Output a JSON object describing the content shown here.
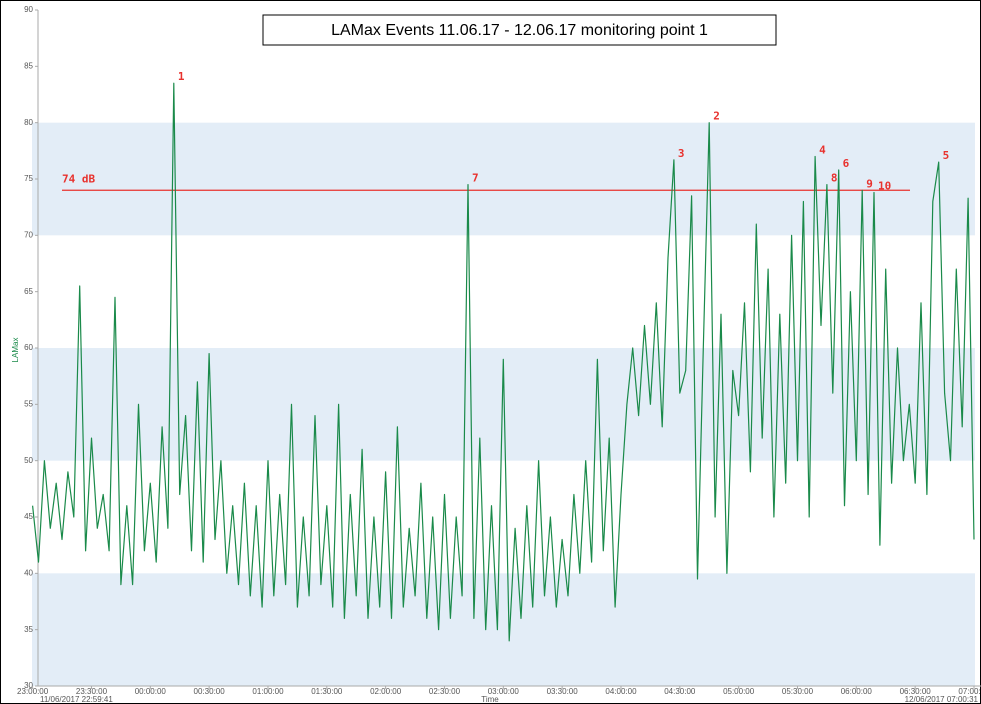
{
  "chart_data": {
    "type": "line",
    "title": "LAMax Events 11.06.17 - 12.06.17 monitoring point 1",
    "x_label": "Time",
    "y_label": "LAMax",
    "date_labels": [
      "11/06/2017 22:59:41",
      "12/06/2017 07:00:31"
    ],
    "xlim": [
      "22:59:41",
      "07:00:31"
    ],
    "xticks": [
      "23:00:00",
      "23:30:00",
      "00:00:00",
      "00:30:00",
      "01:00:00",
      "01:30:00",
      "02:00:00",
      "02:30:00",
      "03:00:00",
      "03:30:00",
      "04:00:00",
      "04:30:00",
      "05:00:00",
      "05:30:00",
      "06:00:00",
      "06:30:00",
      "07:00:00"
    ],
    "ylim": [
      30,
      90
    ],
    "yticks": [
      30,
      35,
      40,
      45,
      50,
      55,
      60,
      65,
      70,
      75,
      80,
      85,
      90
    ],
    "bands": [
      [
        30,
        40
      ],
      [
        50,
        60
      ],
      [
        70,
        80
      ]
    ],
    "band_color": "#e3edf7",
    "threshold": {
      "value": 74,
      "label": "74 dB",
      "color": "#e8322e"
    },
    "x": [
      "23:00:00",
      "23:03:00",
      "23:06:00",
      "23:09:00",
      "23:12:00",
      "23:15:00",
      "23:18:00",
      "23:21:00",
      "23:24:00",
      "23:27:00",
      "23:30:00",
      "23:33:00",
      "23:36:00",
      "23:39:00",
      "23:42:00",
      "23:45:00",
      "23:48:00",
      "23:51:00",
      "23:54:00",
      "23:57:00",
      "00:00:00",
      "00:03:00",
      "00:06:00",
      "00:09:00",
      "00:12:00",
      "00:15:00",
      "00:18:00",
      "00:21:00",
      "00:24:00",
      "00:27:00",
      "00:30:00",
      "00:33:00",
      "00:36:00",
      "00:39:00",
      "00:42:00",
      "00:45:00",
      "00:48:00",
      "00:51:00",
      "00:54:00",
      "00:57:00",
      "01:00:00",
      "01:03:00",
      "01:06:00",
      "01:09:00",
      "01:12:00",
      "01:15:00",
      "01:18:00",
      "01:21:00",
      "01:24:00",
      "01:27:00",
      "01:30:00",
      "01:33:00",
      "01:36:00",
      "01:39:00",
      "01:42:00",
      "01:45:00",
      "01:48:00",
      "01:51:00",
      "01:54:00",
      "01:57:00",
      "02:00:00",
      "02:03:00",
      "02:06:00",
      "02:09:00",
      "02:12:00",
      "02:15:00",
      "02:18:00",
      "02:21:00",
      "02:24:00",
      "02:27:00",
      "02:30:00",
      "02:33:00",
      "02:36:00",
      "02:39:00",
      "02:42:00",
      "02:45:00",
      "02:48:00",
      "02:51:00",
      "02:54:00",
      "02:57:00",
      "03:00:00",
      "03:03:00",
      "03:06:00",
      "03:09:00",
      "03:12:00",
      "03:15:00",
      "03:18:00",
      "03:21:00",
      "03:24:00",
      "03:27:00",
      "03:30:00",
      "03:33:00",
      "03:36:00",
      "03:39:00",
      "03:42:00",
      "03:45:00",
      "03:48:00",
      "03:51:00",
      "03:54:00",
      "03:57:00",
      "04:00:00",
      "04:03:00",
      "04:06:00",
      "04:09:00",
      "04:12:00",
      "04:15:00",
      "04:18:00",
      "04:21:00",
      "04:24:00",
      "04:27:00",
      "04:30:00",
      "04:33:00",
      "04:36:00",
      "04:39:00",
      "04:42:00",
      "04:45:00",
      "04:48:00",
      "04:51:00",
      "04:54:00",
      "04:57:00",
      "05:00:00",
      "05:03:00",
      "05:06:00",
      "05:09:00",
      "05:12:00",
      "05:15:00",
      "05:18:00",
      "05:21:00",
      "05:24:00",
      "05:27:00",
      "05:30:00",
      "05:33:00",
      "05:36:00",
      "05:39:00",
      "05:42:00",
      "05:45:00",
      "05:48:00",
      "05:51:00",
      "05:54:00",
      "05:57:00",
      "06:00:00",
      "06:03:00",
      "06:06:00",
      "06:09:00",
      "06:12:00",
      "06:15:00",
      "06:18:00",
      "06:21:00",
      "06:24:00",
      "06:27:00",
      "06:30:00",
      "06:33:00",
      "06:36:00",
      "06:39:00",
      "06:42:00",
      "06:45:00",
      "06:48:00",
      "06:51:00",
      "06:54:00",
      "06:57:00",
      "07:00:00"
    ],
    "series": [
      {
        "name": "LAMax",
        "color": "#1a8a4a",
        "values": [
          46,
          41,
          50,
          44,
          48,
          43,
          49,
          45,
          65.5,
          42,
          52,
          44,
          47,
          42,
          64.5,
          39,
          46,
          39,
          55,
          42,
          48,
          41,
          53,
          44,
          83.5,
          47,
          54,
          42,
          57,
          41,
          59.5,
          43,
          50,
          40,
          46,
          39,
          48,
          38,
          46,
          37,
          50,
          38,
          47,
          39,
          55,
          37,
          45,
          38,
          54,
          39,
          46,
          37,
          55,
          36,
          47,
          38,
          51,
          36,
          45,
          37,
          49,
          36,
          53,
          37,
          44,
          38,
          48,
          36,
          45,
          35,
          47,
          36,
          45,
          38,
          74.5,
          36,
          52,
          35,
          46,
          35,
          59,
          34,
          44,
          36,
          46,
          37,
          50,
          38,
          45,
          37,
          43,
          38,
          47,
          40,
          50,
          41,
          59,
          42,
          52,
          37,
          47,
          55,
          60,
          54,
          62,
          55,
          64,
          53,
          68,
          76.7,
          56,
          58,
          73.5,
          39.5,
          60,
          80,
          45,
          63,
          40,
          58,
          54,
          64,
          49,
          71,
          52,
          67,
          45,
          63,
          48,
          70,
          50,
          73,
          45,
          77,
          62,
          74.5,
          56,
          75.8,
          46,
          65,
          50,
          74,
          47,
          73.8,
          42.5,
          67,
          48,
          60,
          50,
          55,
          48,
          64,
          47,
          73,
          76.5,
          56,
          50,
          67,
          53,
          73.3,
          43
        ]
      }
    ],
    "annotations": [
      {
        "text": "1",
        "x": "00:12:00",
        "y": 83.5
      },
      {
        "text": "2",
        "x": "04:45:00",
        "y": 80
      },
      {
        "text": "3",
        "x": "04:27:00",
        "y": 76.7
      },
      {
        "text": "4",
        "x": "05:39:00",
        "y": 77
      },
      {
        "text": "5",
        "x": "06:42:00",
        "y": 76.5
      },
      {
        "text": "6",
        "x": "05:51:00",
        "y": 75.8
      },
      {
        "text": "7",
        "x": "02:42:00",
        "y": 74.5
      },
      {
        "text": "8",
        "x": "05:45:00",
        "y": 74.5
      },
      {
        "text": "9",
        "x": "06:03:00",
        "y": 74
      },
      {
        "text": "10",
        "x": "06:09:00",
        "y": 73.8
      }
    ],
    "annotation_color": "#e8322e"
  }
}
